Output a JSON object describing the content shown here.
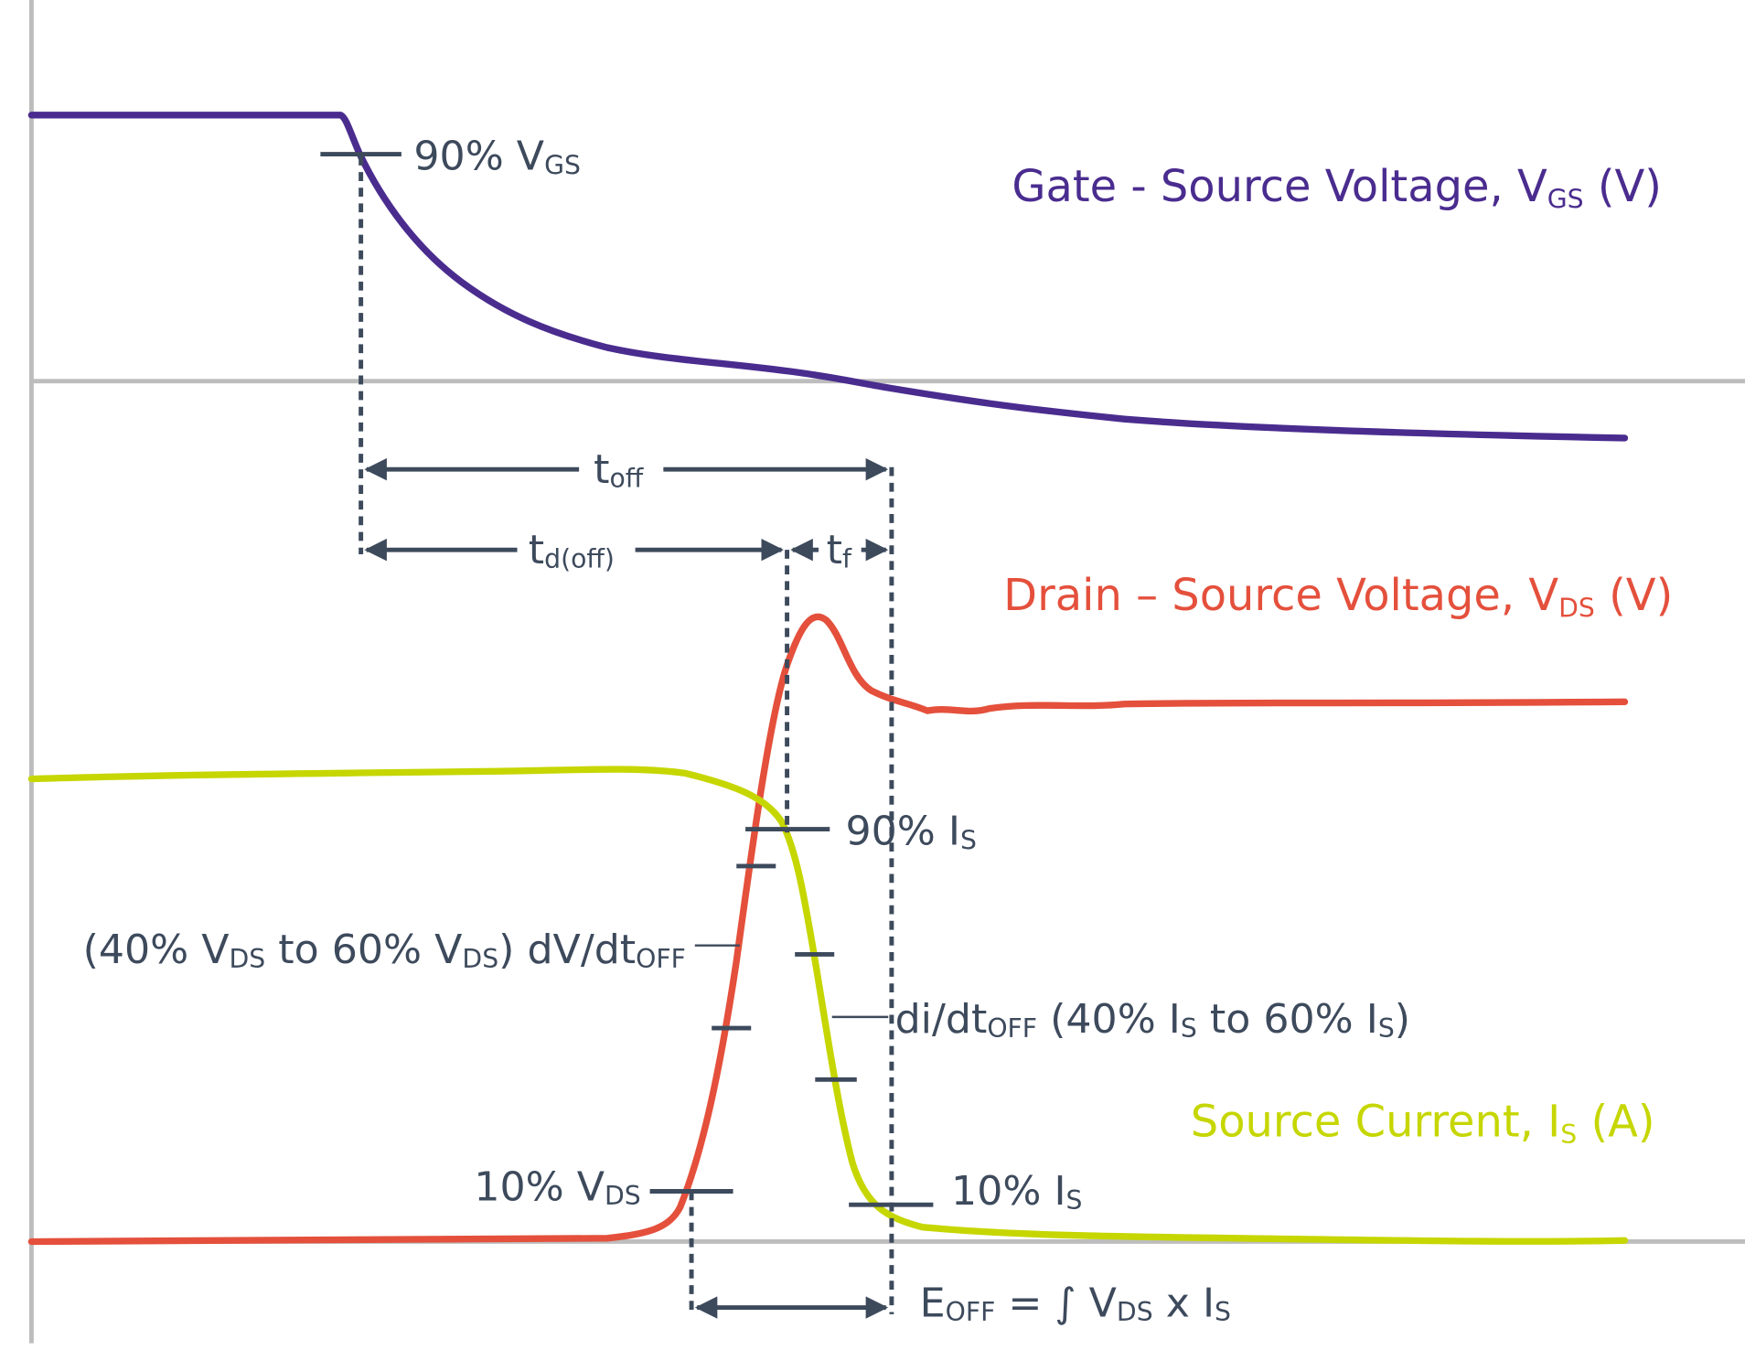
{
  "colors": {
    "vgs": "#4a2c8f",
    "vds": "#e4503c",
    "is": "#c6d600",
    "annotation": "#3d4a5c",
    "axis": "#bdbdbd"
  },
  "titles": {
    "vgs": {
      "main": "Gate - Source Voltage, V",
      "sub": "GS",
      "tail": " (V)"
    },
    "vds": {
      "main": "Drain – Source Voltage, V",
      "sub": "DS",
      "tail": " (V)"
    },
    "is": {
      "main": "Source Current, I",
      "sub": "S",
      "tail": " (A)"
    }
  },
  "labels": {
    "vgs90": {
      "main": "90% V",
      "sub": "GS"
    },
    "toff": {
      "main": "t",
      "sub": "off"
    },
    "tdoff": {
      "main": "t",
      "sub": "d(off)"
    },
    "tf": {
      "main": "t",
      "sub": "f"
    },
    "is90": {
      "main": "90% I",
      "sub": "S"
    },
    "dvdt": {
      "a": "(40% V",
      "as": "DS",
      "b": " to 60% V",
      "bs": "DS",
      "c": ") dV/dt",
      "cs": "OFF"
    },
    "didt": {
      "a": "di/dt",
      "as": "OFF",
      "b": " (40% I",
      "bs": "S",
      "c": " to 60% I",
      "cs": "S",
      "d": ")"
    },
    "vds10": {
      "main": "10% V",
      "sub": "DS"
    },
    "is10": {
      "main": "10% I",
      "sub": "S"
    },
    "eoff": {
      "a": "E",
      "as": "OFF",
      "b": " = ∫  V",
      "bs": "DS",
      "c": " x I",
      "cs": "S"
    }
  }
}
